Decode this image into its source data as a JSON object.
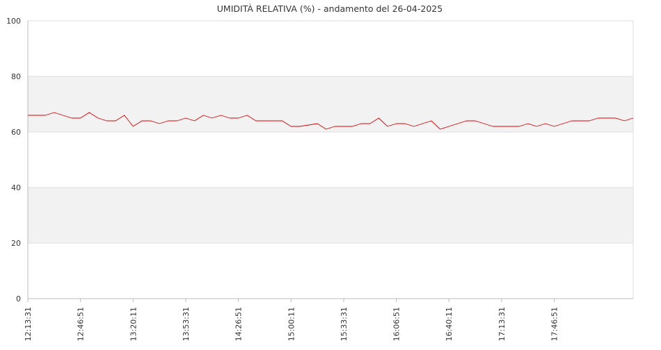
{
  "chart_data": {
    "type": "line",
    "title": "UMIDITÀ RELATIVA (%) - andamento del 26-04-2025",
    "xlabel": "",
    "ylabel": "",
    "ylim": [
      0,
      100
    ],
    "y_ticks": [
      0,
      20,
      40,
      60,
      80,
      100
    ],
    "x_tick_labels": [
      "12:13:31",
      "12:46:51",
      "13:20:11",
      "13:53:31",
      "14:26:51",
      "15:00:11",
      "15:33:31",
      "16:06:51",
      "16:40:11",
      "17:13:31",
      "17:46:51"
    ],
    "bands": [
      [
        20,
        40
      ],
      [
        60,
        80
      ]
    ],
    "grid": true,
    "legend": "none",
    "series": [
      {
        "color": "#e00000",
        "values": [
          66,
          66,
          66,
          67,
          66,
          65,
          65,
          67,
          65,
          64,
          64,
          66,
          62,
          64,
          64,
          63,
          64,
          64,
          65,
          64,
          66,
          65,
          66,
          65,
          65,
          66,
          64,
          64,
          64,
          64,
          62,
          62,
          62.5,
          63,
          61,
          62,
          62,
          62,
          63,
          63,
          65,
          62,
          63,
          63,
          62,
          63,
          64,
          61,
          62,
          63,
          64,
          64,
          63,
          62,
          62,
          62,
          62,
          63,
          62,
          63,
          62,
          63,
          64,
          64,
          64,
          65,
          65,
          65,
          64,
          65
        ]
      }
    ]
  },
  "colors": {
    "band": "#f2f2f2",
    "grid": "#dddddd",
    "axis": "#bbbbbb",
    "text": "#333333"
  }
}
